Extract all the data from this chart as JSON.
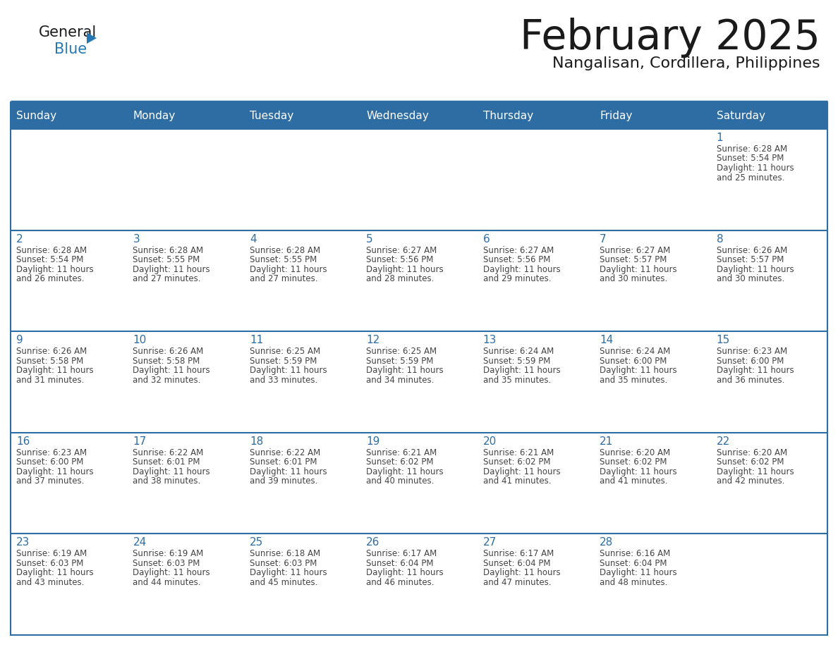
{
  "title": "February 2025",
  "subtitle": "Nangalisan, Cordillera, Philippines",
  "days_of_week": [
    "Sunday",
    "Monday",
    "Tuesday",
    "Wednesday",
    "Thursday",
    "Friday",
    "Saturday"
  ],
  "header_bg": "#2E6DA4",
  "header_text": "#FFFFFF",
  "cell_bg": "#FFFFFF",
  "cell_bg_alt": "#F5F5F5",
  "border_color": "#2E6DA4",
  "day_num_color": "#2E6DA4",
  "text_color": "#444444",
  "title_color": "#1a1a1a",
  "subtitle_color": "#1a1a1a",
  "logo_general_color": "#1a1a1a",
  "logo_blue_color": "#2479B5",
  "calendar_data": [
    [
      null,
      null,
      null,
      null,
      null,
      null,
      {
        "day": 1,
        "sunrise": "6:28 AM",
        "sunset": "5:54 PM",
        "daylight_h": "11 hours",
        "daylight_m": "25 minutes."
      }
    ],
    [
      {
        "day": 2,
        "sunrise": "6:28 AM",
        "sunset": "5:54 PM",
        "daylight_h": "11 hours",
        "daylight_m": "26 minutes."
      },
      {
        "day": 3,
        "sunrise": "6:28 AM",
        "sunset": "5:55 PM",
        "daylight_h": "11 hours",
        "daylight_m": "27 minutes."
      },
      {
        "day": 4,
        "sunrise": "6:28 AM",
        "sunset": "5:55 PM",
        "daylight_h": "11 hours",
        "daylight_m": "27 minutes."
      },
      {
        "day": 5,
        "sunrise": "6:27 AM",
        "sunset": "5:56 PM",
        "daylight_h": "11 hours",
        "daylight_m": "28 minutes."
      },
      {
        "day": 6,
        "sunrise": "6:27 AM",
        "sunset": "5:56 PM",
        "daylight_h": "11 hours",
        "daylight_m": "29 minutes."
      },
      {
        "day": 7,
        "sunrise": "6:27 AM",
        "sunset": "5:57 PM",
        "daylight_h": "11 hours",
        "daylight_m": "30 minutes."
      },
      {
        "day": 8,
        "sunrise": "6:26 AM",
        "sunset": "5:57 PM",
        "daylight_h": "11 hours",
        "daylight_m": "30 minutes."
      }
    ],
    [
      {
        "day": 9,
        "sunrise": "6:26 AM",
        "sunset": "5:58 PM",
        "daylight_h": "11 hours",
        "daylight_m": "31 minutes."
      },
      {
        "day": 10,
        "sunrise": "6:26 AM",
        "sunset": "5:58 PM",
        "daylight_h": "11 hours",
        "daylight_m": "32 minutes."
      },
      {
        "day": 11,
        "sunrise": "6:25 AM",
        "sunset": "5:59 PM",
        "daylight_h": "11 hours",
        "daylight_m": "33 minutes."
      },
      {
        "day": 12,
        "sunrise": "6:25 AM",
        "sunset": "5:59 PM",
        "daylight_h": "11 hours",
        "daylight_m": "34 minutes."
      },
      {
        "day": 13,
        "sunrise": "6:24 AM",
        "sunset": "5:59 PM",
        "daylight_h": "11 hours",
        "daylight_m": "35 minutes."
      },
      {
        "day": 14,
        "sunrise": "6:24 AM",
        "sunset": "6:00 PM",
        "daylight_h": "11 hours",
        "daylight_m": "35 minutes."
      },
      {
        "day": 15,
        "sunrise": "6:23 AM",
        "sunset": "6:00 PM",
        "daylight_h": "11 hours",
        "daylight_m": "36 minutes."
      }
    ],
    [
      {
        "day": 16,
        "sunrise": "6:23 AM",
        "sunset": "6:00 PM",
        "daylight_h": "11 hours",
        "daylight_m": "37 minutes."
      },
      {
        "day": 17,
        "sunrise": "6:22 AM",
        "sunset": "6:01 PM",
        "daylight_h": "11 hours",
        "daylight_m": "38 minutes."
      },
      {
        "day": 18,
        "sunrise": "6:22 AM",
        "sunset": "6:01 PM",
        "daylight_h": "11 hours",
        "daylight_m": "39 minutes."
      },
      {
        "day": 19,
        "sunrise": "6:21 AM",
        "sunset": "6:02 PM",
        "daylight_h": "11 hours",
        "daylight_m": "40 minutes."
      },
      {
        "day": 20,
        "sunrise": "6:21 AM",
        "sunset": "6:02 PM",
        "daylight_h": "11 hours",
        "daylight_m": "41 minutes."
      },
      {
        "day": 21,
        "sunrise": "6:20 AM",
        "sunset": "6:02 PM",
        "daylight_h": "11 hours",
        "daylight_m": "41 minutes."
      },
      {
        "day": 22,
        "sunrise": "6:20 AM",
        "sunset": "6:02 PM",
        "daylight_h": "11 hours",
        "daylight_m": "42 minutes."
      }
    ],
    [
      {
        "day": 23,
        "sunrise": "6:19 AM",
        "sunset": "6:03 PM",
        "daylight_h": "11 hours",
        "daylight_m": "43 minutes."
      },
      {
        "day": 24,
        "sunrise": "6:19 AM",
        "sunset": "6:03 PM",
        "daylight_h": "11 hours",
        "daylight_m": "44 minutes."
      },
      {
        "day": 25,
        "sunrise": "6:18 AM",
        "sunset": "6:03 PM",
        "daylight_h": "11 hours",
        "daylight_m": "45 minutes."
      },
      {
        "day": 26,
        "sunrise": "6:17 AM",
        "sunset": "6:04 PM",
        "daylight_h": "11 hours",
        "daylight_m": "46 minutes."
      },
      {
        "day": 27,
        "sunrise": "6:17 AM",
        "sunset": "6:04 PM",
        "daylight_h": "11 hours",
        "daylight_m": "47 minutes."
      },
      {
        "day": 28,
        "sunrise": "6:16 AM",
        "sunset": "6:04 PM",
        "daylight_h": "11 hours",
        "daylight_m": "48 minutes."
      },
      null
    ]
  ]
}
